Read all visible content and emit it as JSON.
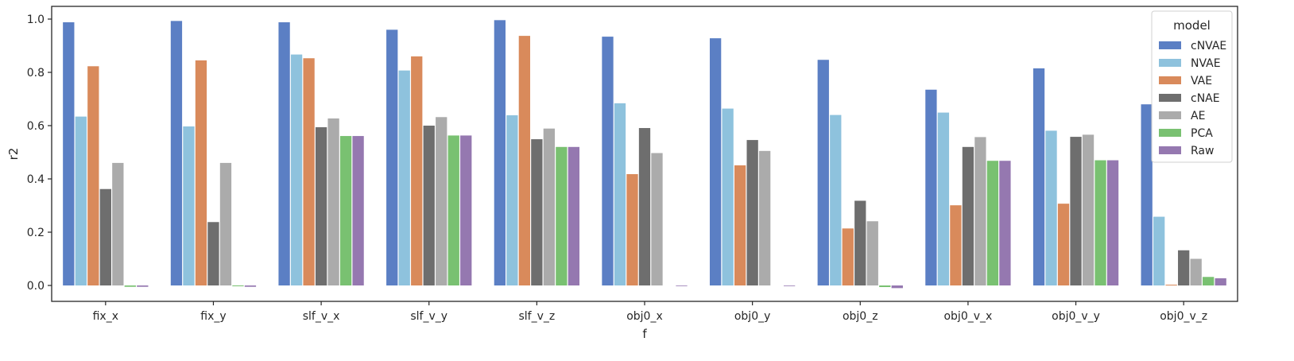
{
  "chart_data": {
    "type": "bar",
    "xlabel": "f",
    "ylabel": "r2",
    "ylim": [
      -0.04,
      1.04
    ],
    "yticks": [
      "0.0",
      "0.2",
      "0.4",
      "0.6",
      "0.8",
      "1.0"
    ],
    "ytick_values": [
      0,
      0.2,
      0.4,
      0.6,
      0.8,
      1.0
    ],
    "categories": [
      "fix_x",
      "fix_y",
      "slf_v_x",
      "slf_v_y",
      "slf_v_z",
      "obj0_x",
      "obj0_y",
      "obj0_z",
      "obj0_v_x",
      "obj0_v_y",
      "obj0_v_z"
    ],
    "legend": {
      "title": "model",
      "position": "upper-right"
    },
    "grid": false,
    "series": [
      {
        "name": "cNVAE",
        "color": "#5b7fc4",
        "values": [
          0.988,
          0.993,
          0.988,
          0.96,
          0.996,
          0.934,
          0.928,
          0.847,
          0.735,
          0.815,
          0.68
        ]
      },
      {
        "name": "NVAE",
        "color": "#8ec2dd",
        "values": [
          0.634,
          0.597,
          0.867,
          0.807,
          0.639,
          0.684,
          0.664,
          0.64,
          0.649,
          0.581,
          0.258
        ]
      },
      {
        "name": "VAE",
        "color": "#d98a5b",
        "values": [
          0.823,
          0.845,
          0.853,
          0.86,
          0.937,
          0.418,
          0.451,
          0.214,
          0.301,
          0.307,
          0.003
        ]
      },
      {
        "name": "cNAE",
        "color": "#6e6e6e",
        "values": [
          0.362,
          0.238,
          0.594,
          0.6,
          0.549,
          0.591,
          0.546,
          0.318,
          0.52,
          0.558,
          0.132
        ]
      },
      {
        "name": "AE",
        "color": "#ababab",
        "values": [
          0.46,
          0.46,
          0.627,
          0.632,
          0.589,
          0.497,
          0.505,
          0.241,
          0.557,
          0.566,
          0.1
        ]
      },
      {
        "name": "PCA",
        "color": "#79c171",
        "values": [
          -0.005,
          -0.003,
          0.561,
          0.563,
          0.52,
          null,
          null,
          -0.006,
          0.468,
          0.47,
          0.032
        ]
      },
      {
        "name": "Raw",
        "color": "#9578b0",
        "values": [
          -0.005,
          -0.005,
          0.561,
          0.563,
          0.52,
          -0.002,
          -0.002,
          -0.01,
          0.468,
          0.47,
          0.027
        ]
      }
    ]
  }
}
